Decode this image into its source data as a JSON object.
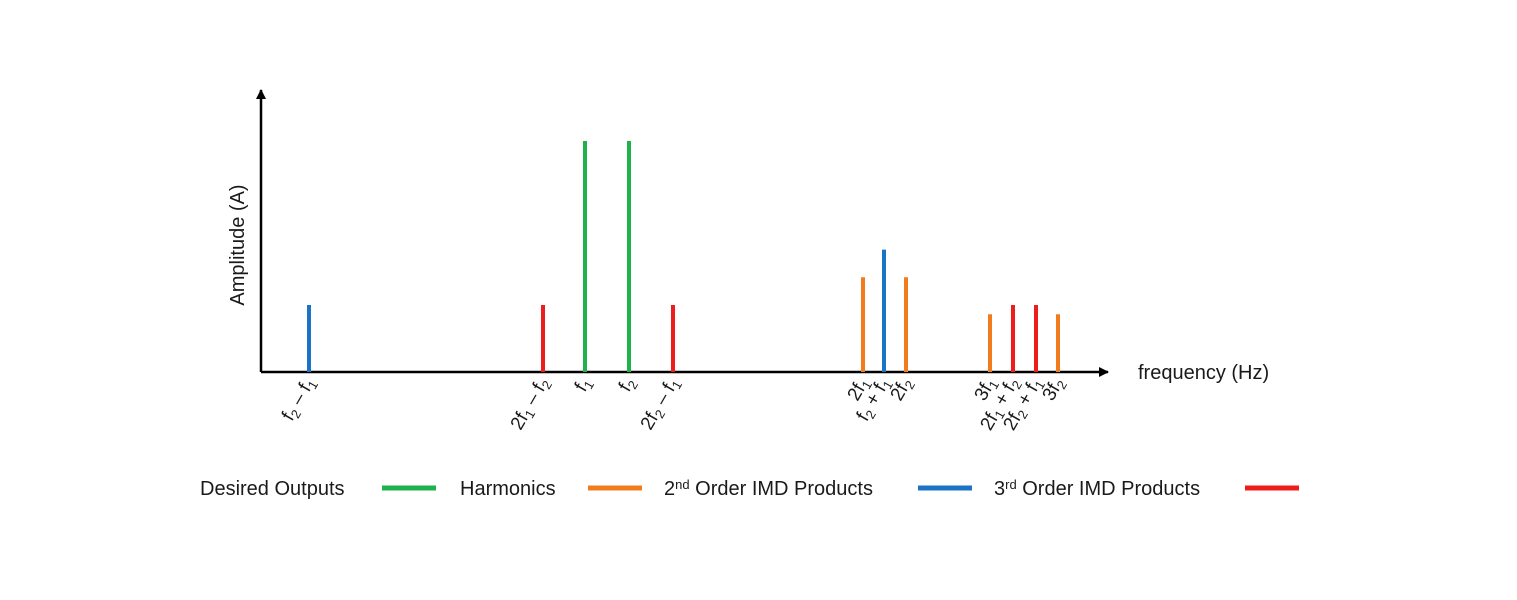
{
  "axes": {
    "x_label": "frequency (Hz)",
    "y_label": "Amplitude (A)"
  },
  "legend": [
    {
      "id": "desired",
      "parts": [
        {
          "t": "Desired Outputs"
        }
      ],
      "color": "#1fb14b"
    },
    {
      "id": "harmonics",
      "parts": [
        {
          "t": "Harmonics"
        }
      ],
      "color": "#f07c1e"
    },
    {
      "id": "second",
      "parts": [
        {
          "t": "2"
        },
        {
          "t": "nd",
          "sup": true
        },
        {
          "t": " Order IMD Products"
        }
      ],
      "color": "#1a73c4"
    },
    {
      "id": "third",
      "parts": [
        {
          "t": "3"
        },
        {
          "t": "rd",
          "sup": true
        },
        {
          "t": " Order IMD Products"
        }
      ],
      "color": "#ef1c1c"
    }
  ],
  "spectral_lines": [
    {
      "id": "f2-minus-f1",
      "category": "second",
      "height": 0.29,
      "label": [
        {
          "t": "f"
        },
        {
          "t": "2",
          "sub": true
        },
        {
          "t": " – f"
        },
        {
          "t": "1",
          "sub": true
        }
      ]
    },
    {
      "id": "2f1-minus-f2",
      "category": "third",
      "height": 0.29,
      "label": [
        {
          "t": "2f"
        },
        {
          "t": "1",
          "sub": true
        },
        {
          "t": " – f"
        },
        {
          "t": "2",
          "sub": true
        }
      ]
    },
    {
      "id": "f1",
      "category": "desired",
      "height": 1.0,
      "label": [
        {
          "t": "f"
        },
        {
          "t": "1",
          "sub": true
        }
      ]
    },
    {
      "id": "f2",
      "category": "desired",
      "height": 1.0,
      "label": [
        {
          "t": "f"
        },
        {
          "t": "2",
          "sub": true
        }
      ]
    },
    {
      "id": "2f2-minus-f1",
      "category": "third",
      "height": 0.29,
      "label": [
        {
          "t": "2f"
        },
        {
          "t": "2",
          "sub": true
        },
        {
          "t": " – f"
        },
        {
          "t": "1",
          "sub": true
        }
      ]
    },
    {
      "id": "2f1",
      "category": "harmonics",
      "height": 0.41,
      "label": [
        {
          "t": "2f"
        },
        {
          "t": "1",
          "sub": true
        }
      ]
    },
    {
      "id": "f2-plus-f1",
      "category": "second",
      "height": 0.53,
      "label": [
        {
          "t": "f"
        },
        {
          "t": "2",
          "sub": true
        },
        {
          "t": " + f"
        },
        {
          "t": "1",
          "sub": true
        }
      ]
    },
    {
      "id": "2f2",
      "category": "harmonics",
      "height": 0.41,
      "label": [
        {
          "t": "2f"
        },
        {
          "t": "2",
          "sub": true
        }
      ]
    },
    {
      "id": "3f1",
      "category": "harmonics",
      "height": 0.25,
      "label": [
        {
          "t": "3f"
        },
        {
          "t": "1",
          "sub": true
        }
      ]
    },
    {
      "id": "2f1-plus-f2",
      "category": "third",
      "height": 0.29,
      "label": [
        {
          "t": "2f"
        },
        {
          "t": "1",
          "sub": true
        },
        {
          "t": " + f"
        },
        {
          "t": "2",
          "sub": true
        }
      ]
    },
    {
      "id": "2f2-plus-f1",
      "category": "third",
      "height": 0.29,
      "label": [
        {
          "t": "2f"
        },
        {
          "t": "2",
          "sub": true
        },
        {
          "t": " + f"
        },
        {
          "t": "1",
          "sub": true
        }
      ]
    },
    {
      "id": "3f2",
      "category": "harmonics",
      "height": 0.25,
      "label": [
        {
          "t": "3f"
        },
        {
          "t": "2",
          "sub": true
        }
      ]
    }
  ]
}
